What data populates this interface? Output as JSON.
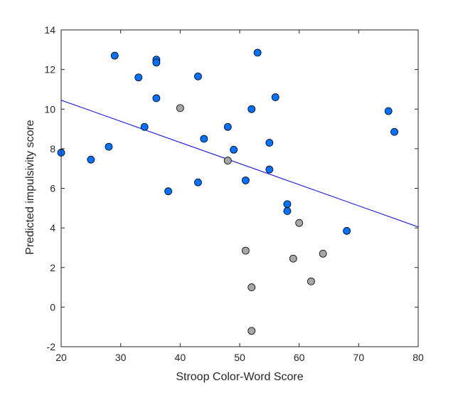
{
  "chart_data": {
    "type": "scatter",
    "title": "",
    "xlabel": "Stroop Color-Word Score",
    "ylabel": "Predicted impulsivity score",
    "xlim": [
      20,
      80
    ],
    "ylim": [
      -2,
      14
    ],
    "xticks": [
      20,
      30,
      40,
      50,
      60,
      70,
      80
    ],
    "yticks": [
      -2,
      0,
      2,
      4,
      6,
      8,
      10,
      12,
      14
    ],
    "xtick_labels": [
      "20",
      "30",
      "40",
      "50",
      "60",
      "70",
      "80"
    ],
    "ytick_labels": [
      "-2",
      "0",
      "2",
      "4",
      "6",
      "8",
      "10",
      "12",
      "14"
    ],
    "grid": false,
    "legend": "none",
    "colors": {
      "blue_points": "#0072ff",
      "gray_points": "#a6a6a6",
      "marker_edge": "#000000",
      "fit_line": "#0000ff",
      "axes": "#262626"
    },
    "series": [
      {
        "color": "#0072ff",
        "points": [
          [
            20,
            7.8
          ],
          [
            25,
            7.45
          ],
          [
            28,
            8.1
          ],
          [
            29,
            12.7
          ],
          [
            33,
            11.6
          ],
          [
            34,
            9.1
          ],
          [
            36,
            12.5
          ],
          [
            36,
            12.35
          ],
          [
            36,
            10.55
          ],
          [
            38,
            5.85
          ],
          [
            43,
            11.65
          ],
          [
            43,
            6.3
          ],
          [
            44,
            8.5
          ],
          [
            48,
            9.1
          ],
          [
            49,
            7.95
          ],
          [
            51,
            6.4
          ],
          [
            52,
            10.0
          ],
          [
            53,
            12.85
          ],
          [
            55,
            8.3
          ],
          [
            55,
            6.95
          ],
          [
            56,
            10.6
          ],
          [
            58,
            5.2
          ],
          [
            58,
            4.85
          ],
          [
            68,
            3.85
          ],
          [
            75,
            9.9
          ],
          [
            76,
            8.85
          ]
        ]
      },
      {
        "color": "#a6a6a6",
        "points": [
          [
            40,
            10.05
          ],
          [
            48,
            7.4
          ],
          [
            51,
            2.85
          ],
          [
            52,
            1.0
          ],
          [
            52,
            -1.2
          ],
          [
            59,
            2.45
          ],
          [
            60,
            4.25
          ],
          [
            62,
            1.3
          ],
          [
            64,
            2.7
          ]
        ]
      }
    ],
    "fit_line": {
      "x": [
        20,
        80
      ],
      "y": [
        10.45,
        4.05
      ]
    }
  }
}
